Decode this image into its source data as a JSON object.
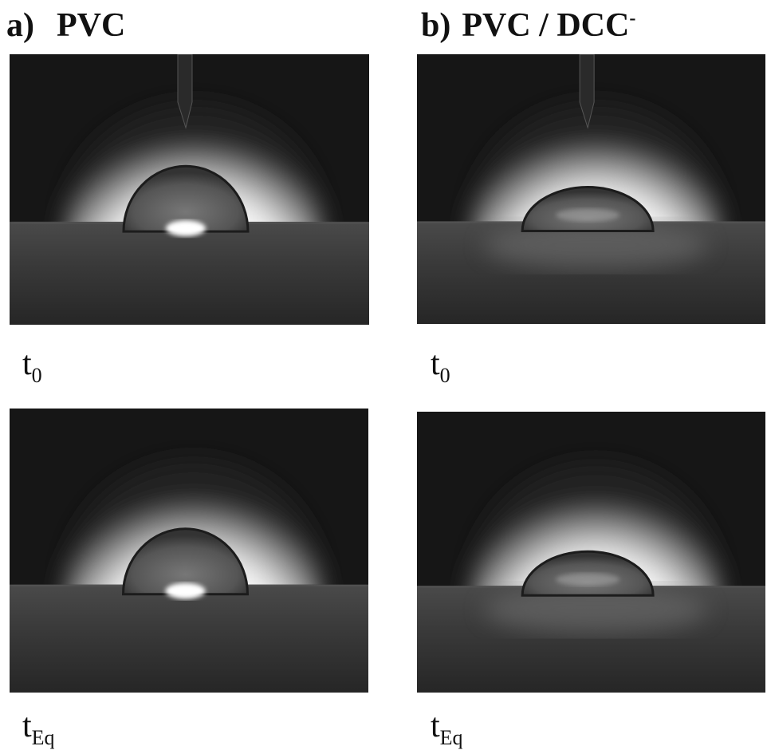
{
  "panels": [
    {
      "label": "a)",
      "title": "PVC",
      "images": [
        {
          "caption": {
            "main": "t",
            "sub": "0"
          }
        },
        {
          "caption": {
            "main": "t",
            "sub": "Eq"
          }
        }
      ]
    },
    {
      "label": "b)",
      "title": "PVC / DCC",
      "title_sup": "-",
      "images": [
        {
          "caption": {
            "main": "t",
            "sub": "0"
          }
        },
        {
          "caption": {
            "main": "t",
            "sub": "Eq"
          }
        }
      ]
    }
  ]
}
